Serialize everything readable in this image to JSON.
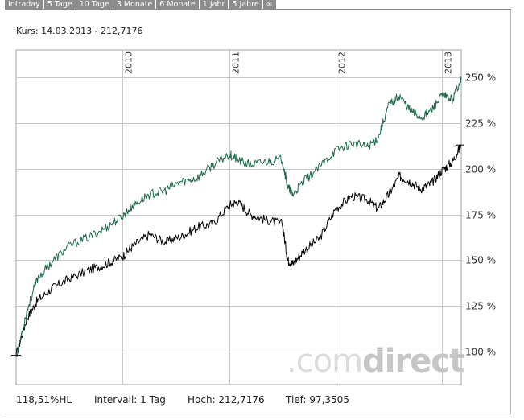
{
  "tabs": [
    "Intraday",
    "5 Tage",
    "10 Tage",
    "3 Monate",
    "6 Monate",
    "1 Jahr",
    "5 Jahre",
    "∞"
  ],
  "header": {
    "kurs": "Kurs: 14.03.2013 - 212,7176"
  },
  "watermark": {
    "text_light": ".com",
    "text_dark": "direct"
  },
  "stats": {
    "change": "118,51%HL",
    "intervall": "Intervall: 1 Tag",
    "hoch": "Hoch: 212,7176",
    "tief": "Tief: 97,3505"
  },
  "colors": {
    "benchmark": "#1e6b4a",
    "fund": "#000000",
    "grid": "#c8c8c8",
    "tabs": "#8c8c8c"
  },
  "chart_data": {
    "type": "line",
    "x_tick_labels": [
      "2010",
      "2011",
      "2012",
      "2013"
    ],
    "y_tick_labels": [
      "100 %",
      "125 %",
      "150 %",
      "175 %",
      "200 %",
      "225 %",
      "250 %"
    ],
    "ylim": [
      82,
      265
    ],
    "y_ticks": [
      100,
      125,
      150,
      175,
      200,
      225,
      250
    ],
    "x": [
      2009.0,
      2009.1,
      2009.2,
      2009.35,
      2009.5,
      2009.7,
      2009.85,
      2010.0,
      2010.1,
      2010.25,
      2010.4,
      2010.55,
      2010.7,
      2010.85,
      2011.0,
      2011.08,
      2011.2,
      2011.35,
      2011.5,
      2011.55,
      2011.6,
      2011.7,
      2011.85,
      2012.0,
      2012.15,
      2012.3,
      2012.4,
      2012.5,
      2012.6,
      2012.7,
      2012.8,
      2012.9,
      2013.0,
      2013.1,
      2013.18
    ],
    "series": [
      {
        "values": [
          98,
          118,
          128,
          135,
          140,
          145,
          148,
          152,
          158,
          164,
          160,
          163,
          168,
          170,
          180,
          182,
          175,
          172,
          170,
          150,
          148,
          155,
          162,
          178,
          185,
          183,
          178,
          186,
          196,
          193,
          189,
          192,
          199,
          204,
          213
        ]
      },
      {
        "values": [
          97,
          122,
          140,
          150,
          158,
          163,
          168,
          174,
          180,
          186,
          188,
          193,
          195,
          202,
          208,
          205,
          202,
          204,
          205,
          190,
          186,
          193,
          201,
          210,
          214,
          212,
          217,
          235,
          240,
          232,
          228,
          232,
          240,
          238,
          250
        ]
      }
    ]
  }
}
